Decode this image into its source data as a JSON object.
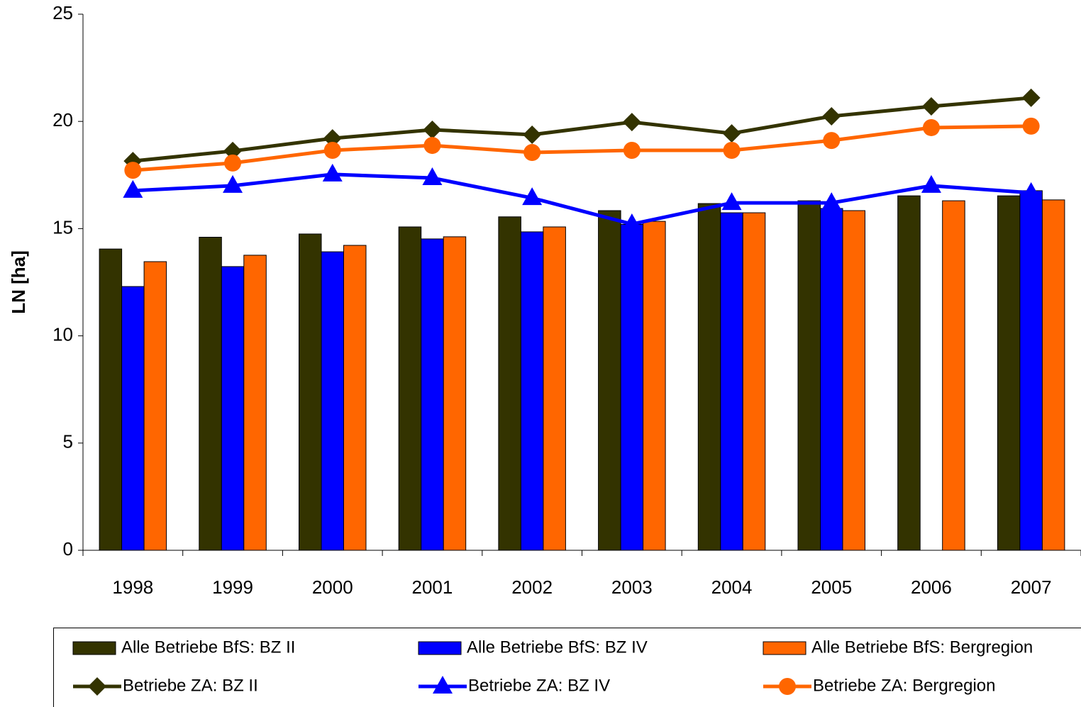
{
  "chart_data": {
    "type": "bar",
    "y_label": "LN [ha]",
    "categories": [
      "1998",
      "1999",
      "2000",
      "2001",
      "2002",
      "2003",
      "2004",
      "2005",
      "2006",
      "2007"
    ],
    "ylim": [
      0,
      25
    ],
    "yticks": [
      0,
      5,
      10,
      15,
      20,
      25
    ],
    "grid": false,
    "legend": "bottom",
    "series": [
      {
        "name": "Alle Betriebe BfS: BZ II",
        "type": "bar",
        "color": "#333300",
        "values": [
          14.05,
          14.6,
          14.75,
          15.08,
          15.55,
          15.84,
          16.17,
          16.3,
          16.53,
          16.53
        ]
      },
      {
        "name": "Alle Betriebe BfS: BZ IV",
        "type": "bar",
        "color": "#0000ff",
        "values": [
          12.3,
          13.23,
          13.92,
          14.52,
          14.85,
          15.2,
          15.74,
          15.94,
          null,
          16.77
        ]
      },
      {
        "name": "Alle Betriebe BfS: Bergregion",
        "type": "bar",
        "color": "#ff6600",
        "values": [
          13.46,
          13.76,
          14.22,
          14.62,
          15.08,
          15.34,
          15.74,
          15.84,
          16.3,
          16.34
        ]
      },
      {
        "name": "Betriebe ZA: BZ II",
        "type": "line",
        "marker": "diamond",
        "color": "#333300",
        "values": [
          18.15,
          18.62,
          19.21,
          19.61,
          19.38,
          19.97,
          19.44,
          20.24,
          20.7,
          21.1
        ]
      },
      {
        "name": "Betriebe ZA: BZ IV",
        "type": "line",
        "marker": "triangle",
        "color": "#0000ff",
        "values": [
          16.77,
          17.0,
          17.53,
          17.36,
          16.43,
          15.21,
          16.2,
          16.2,
          17.0,
          16.67
        ]
      },
      {
        "name": "Betriebe ZA: Bergregion",
        "type": "line",
        "marker": "circle",
        "color": "#ff6600",
        "values": [
          17.72,
          18.06,
          18.65,
          18.88,
          18.55,
          18.65,
          18.65,
          19.11,
          19.71,
          19.78
        ]
      }
    ]
  }
}
